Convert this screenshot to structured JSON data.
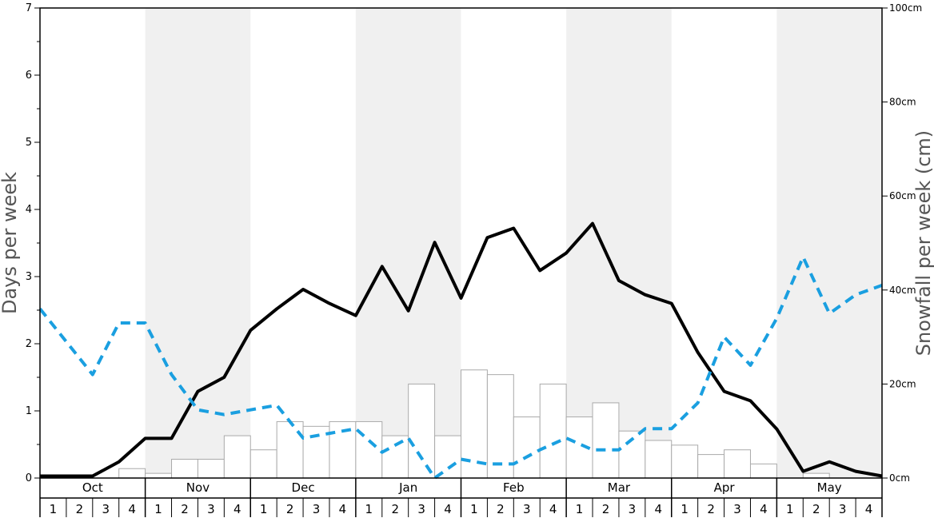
{
  "chart_data": {
    "type": "bar+line",
    "months": [
      "Oct",
      "Nov",
      "Dec",
      "Jan",
      "Feb",
      "Mar",
      "Apr",
      "May"
    ],
    "weeks": [
      "1",
      "2",
      "3",
      "4"
    ],
    "y_left": {
      "label": "Days per week",
      "range": [
        0,
        7
      ],
      "ticks": [
        "0",
        "1",
        "2",
        "3",
        "4",
        "5",
        "6",
        "7"
      ]
    },
    "y_right": {
      "label": "Snowfall per week (cm)",
      "range": [
        0,
        100
      ],
      "ticks": [
        "0cm",
        "20cm",
        "40cm",
        "60cm",
        "80cm",
        "100cm"
      ]
    },
    "shaded_months": [
      "Nov",
      "Jan",
      "Mar",
      "May"
    ],
    "snowfall_cm": [
      0,
      0,
      0,
      2,
      1,
      4,
      4,
      9,
      6,
      12,
      11,
      12,
      12,
      9,
      20,
      9,
      23,
      22,
      13,
      20,
      13,
      16,
      10,
      8,
      7,
      5,
      6,
      3,
      0,
      1,
      0,
      0
    ],
    "series": [
      {
        "axis": "left",
        "style": "solid",
        "color": "#000000",
        "values": [
          0.03,
          0.03,
          0.03,
          0.24,
          0.59,
          0.59,
          1.29,
          1.5,
          2.2,
          2.52,
          2.81,
          2.6,
          2.42,
          3.15,
          2.49,
          3.51,
          2.68,
          3.58,
          3.72,
          3.09,
          3.35,
          3.79,
          2.94,
          2.73,
          2.6,
          1.87,
          1.29,
          1.15,
          0.73,
          0.1,
          0.24,
          0.1,
          0.03
        ]
      },
      {
        "axis": "right",
        "style": "dashed",
        "color": "#1a9fe0",
        "values": [
          36,
          29,
          22,
          33,
          33,
          22,
          14.5,
          13.5,
          14.5,
          15.5,
          8.5,
          9.5,
          10.5,
          5.5,
          8.5,
          0,
          4,
          3,
          3,
          6,
          8.5,
          6,
          6,
          10.5,
          10.5,
          16,
          30,
          24,
          34,
          47,
          35,
          39,
          41
        ]
      }
    ]
  }
}
